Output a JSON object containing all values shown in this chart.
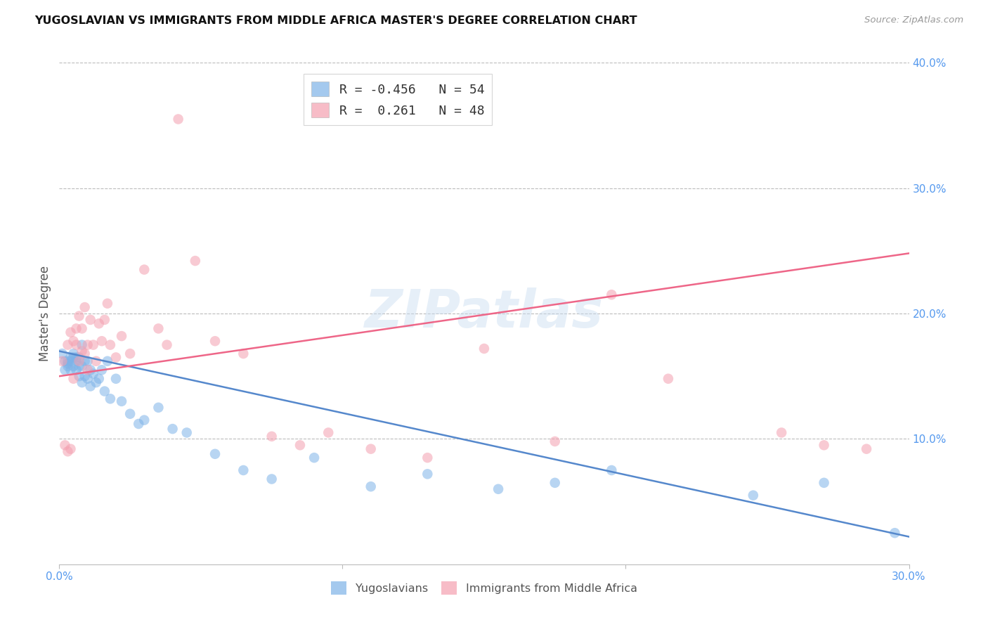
{
  "title": "YUGOSLAVIAN VS IMMIGRANTS FROM MIDDLE AFRICA MASTER'S DEGREE CORRELATION CHART",
  "source": "Source: ZipAtlas.com",
  "ylabel": "Master's Degree",
  "xlim": [
    0.0,
    0.3
  ],
  "ylim": [
    0.0,
    0.4
  ],
  "blue_color": "#7EB3E8",
  "pink_color": "#F4A0B0",
  "blue_line_color": "#5588CC",
  "pink_line_color": "#EE6688",
  "axis_color": "#5599EE",
  "watermark": "ZIPatlas",
  "legend_R_blue": "-0.456",
  "legend_N_blue": "54",
  "legend_R_pink": " 0.261",
  "legend_N_pink": "48",
  "blue_scatter_x": [
    0.001,
    0.002,
    0.002,
    0.003,
    0.003,
    0.003,
    0.004,
    0.004,
    0.004,
    0.005,
    0.005,
    0.005,
    0.006,
    0.006,
    0.006,
    0.007,
    0.007,
    0.007,
    0.008,
    0.008,
    0.008,
    0.009,
    0.009,
    0.01,
    0.01,
    0.011,
    0.011,
    0.012,
    0.013,
    0.014,
    0.015,
    0.016,
    0.017,
    0.018,
    0.02,
    0.022,
    0.025,
    0.028,
    0.03,
    0.035,
    0.04,
    0.045,
    0.055,
    0.065,
    0.075,
    0.09,
    0.11,
    0.13,
    0.155,
    0.175,
    0.195,
    0.245,
    0.27,
    0.295
  ],
  "blue_scatter_y": [
    0.168,
    0.162,
    0.155,
    0.16,
    0.158,
    0.162,
    0.155,
    0.162,
    0.165,
    0.158,
    0.165,
    0.168,
    0.155,
    0.162,
    0.165,
    0.15,
    0.158,
    0.165,
    0.145,
    0.158,
    0.175,
    0.15,
    0.162,
    0.148,
    0.162,
    0.142,
    0.155,
    0.152,
    0.145,
    0.148,
    0.155,
    0.138,
    0.162,
    0.132,
    0.148,
    0.13,
    0.12,
    0.112,
    0.115,
    0.125,
    0.108,
    0.105,
    0.088,
    0.075,
    0.068,
    0.085,
    0.062,
    0.072,
    0.06,
    0.065,
    0.075,
    0.055,
    0.065,
    0.025
  ],
  "pink_scatter_x": [
    0.001,
    0.002,
    0.003,
    0.003,
    0.004,
    0.004,
    0.005,
    0.005,
    0.006,
    0.006,
    0.007,
    0.007,
    0.008,
    0.008,
    0.009,
    0.009,
    0.01,
    0.01,
    0.011,
    0.012,
    0.013,
    0.014,
    0.015,
    0.016,
    0.017,
    0.018,
    0.02,
    0.022,
    0.025,
    0.03,
    0.035,
    0.038,
    0.042,
    0.048,
    0.055,
    0.065,
    0.075,
    0.085,
    0.095,
    0.11,
    0.13,
    0.15,
    0.175,
    0.195,
    0.215,
    0.255,
    0.27,
    0.285
  ],
  "pink_scatter_y": [
    0.162,
    0.095,
    0.175,
    0.09,
    0.185,
    0.092,
    0.178,
    0.148,
    0.175,
    0.188,
    0.198,
    0.162,
    0.188,
    0.17,
    0.205,
    0.168,
    0.175,
    0.155,
    0.195,
    0.175,
    0.162,
    0.192,
    0.178,
    0.195,
    0.208,
    0.175,
    0.165,
    0.182,
    0.168,
    0.235,
    0.188,
    0.175,
    0.355,
    0.242,
    0.178,
    0.168,
    0.102,
    0.095,
    0.105,
    0.092,
    0.085,
    0.172,
    0.098,
    0.215,
    0.148,
    0.105,
    0.095,
    0.092
  ],
  "blue_trend_x": [
    0.0,
    0.3
  ],
  "blue_trend_y": [
    0.17,
    0.022
  ],
  "pink_trend_x": [
    0.0,
    0.3
  ],
  "pink_trend_y": [
    0.15,
    0.248
  ]
}
